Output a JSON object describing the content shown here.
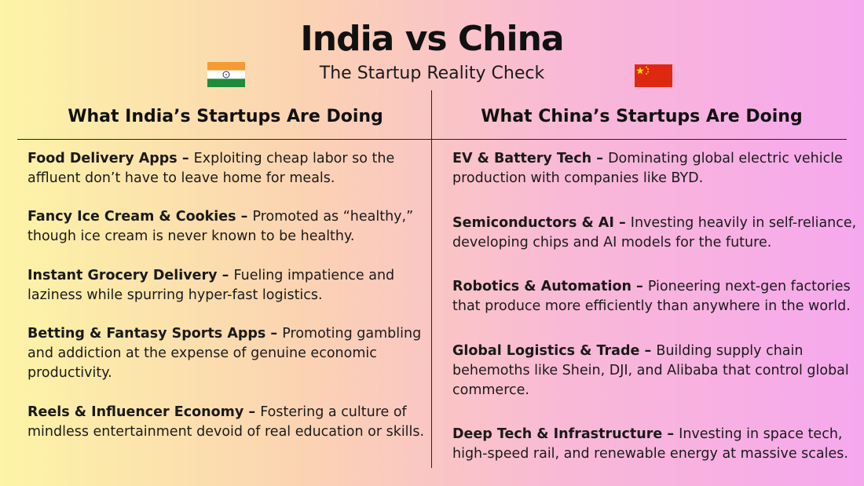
{
  "header": {
    "title": "India vs China",
    "subtitle": "The Startup Reality Check"
  },
  "flags": {
    "india": {
      "icon": "india-flag-icon",
      "colors": [
        "#f49b33",
        "#ffffff",
        "#1f8a3a"
      ]
    },
    "china": {
      "icon": "china-flag-icon",
      "colors": [
        "#de2910",
        "#ffde00"
      ]
    }
  },
  "columns": {
    "india": {
      "heading": "What India’s Startups Are Doing",
      "items": [
        {
          "title": "Food Delivery Apps – ",
          "text": "Exploiting cheap labor so the affluent don’t have to leave home for meals."
        },
        {
          "title": "Fancy Ice Cream & Cookies – ",
          "text": "Promoted as “healthy,” though ice cream is never known to be healthy."
        },
        {
          "title": "Instant Grocery Delivery – ",
          "text": "Fueling impatience and laziness while spurring hyper-fast logistics."
        },
        {
          "title": "Betting & Fantasy Sports Apps – ",
          "text": "Promoting gambling and addiction at the expense of genuine economic productivity."
        },
        {
          "title": "Reels & Influencer Economy – ",
          "text": "Fostering a culture of mindless entertainment devoid of real education or skills."
        }
      ]
    },
    "china": {
      "heading": "What China’s Startups Are Doing",
      "items": [
        {
          "title": "EV & Battery Tech – ",
          "text": "Dominating global electric vehicle production with companies like BYD."
        },
        {
          "title": "Semiconductors & AI – ",
          "text": "Investing heavily in self-reliance, developing chips and AI models for the future."
        },
        {
          "title": "Robotics & Automation – ",
          "text": "Pioneering next-gen factories that produce more efficiently than anywhere in the world."
        },
        {
          "title": "Global Logistics & Trade – ",
          "text": "Building supply chain behemoths like Shein, DJI, and Alibaba that control global commerce."
        },
        {
          "title": "Deep Tech & Infrastructure – ",
          "text": "Investing in space tech, high-speed rail, and renewable energy at massive scales."
        }
      ]
    }
  }
}
